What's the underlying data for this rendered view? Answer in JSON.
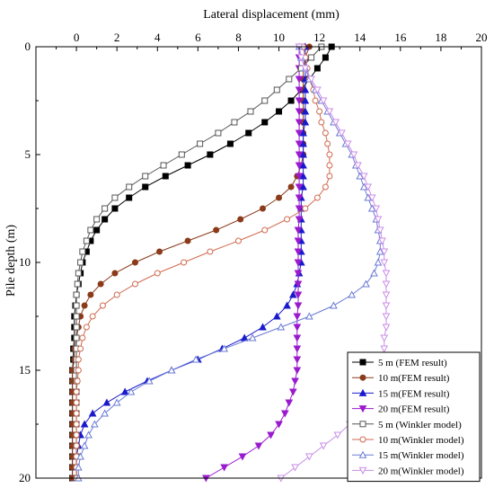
{
  "chart_data": {
    "type": "line",
    "title": "",
    "xlabel": "Lateral displacement (mm)",
    "ylabel": "Pile depth (m)",
    "xlim": [
      -2,
      20
    ],
    "ylim": [
      0,
      20
    ],
    "y_inverted": true,
    "x_axis_position": "top",
    "x_ticks": [
      0,
      2,
      4,
      6,
      8,
      10,
      12,
      14,
      16,
      18,
      20
    ],
    "x_tick_labels": [
      "0",
      "2",
      "4",
      "6",
      "8",
      "10",
      "12",
      "14",
      "16",
      "18",
      "20"
    ],
    "y_ticks": [
      0,
      5,
      10,
      15,
      20
    ],
    "y_tick_labels": [
      "0",
      "5",
      "10",
      "15",
      "20"
    ],
    "grid": false,
    "legend_position": "bottom-right",
    "series": [
      {
        "name": "5 m  (FEM result)",
        "color": "#000000",
        "marker": "square",
        "filled": true,
        "x": [
          12.6,
          12.3,
          11.9,
          11.5,
          11.1,
          10.6,
          10.0,
          9.3,
          8.5,
          7.6,
          6.6,
          5.5,
          4.4,
          3.4,
          2.6,
          1.9,
          1.4,
          1.0,
          0.7,
          0.5,
          0.3,
          0.2,
          0.1,
          0.0,
          -0.05,
          -0.1,
          -0.1,
          -0.1,
          -0.15,
          -0.15,
          -0.2,
          -0.2,
          -0.2,
          -0.2,
          -0.2,
          -0.2,
          -0.2,
          -0.2,
          -0.2,
          -0.2,
          -0.2
        ],
        "y": [
          0,
          0.5,
          1,
          1.5,
          2,
          2.5,
          3,
          3.5,
          4,
          4.5,
          5,
          5.5,
          6,
          6.5,
          7,
          7.5,
          8,
          8.5,
          9,
          9.5,
          10,
          10.5,
          11,
          11.5,
          12,
          12.5,
          13,
          13.5,
          14,
          14.5,
          15,
          15.5,
          16,
          16.5,
          17,
          17.5,
          18,
          18.5,
          19,
          19.5,
          20
        ]
      },
      {
        "name": "10 m(FEM result)",
        "color": "#8b3a1a",
        "marker": "circle",
        "filled": true,
        "x": [
          11.5,
          11.3,
          11.2,
          11.2,
          11.2,
          11.2,
          11.2,
          11.2,
          11.2,
          11.2,
          11.2,
          11.1,
          10.9,
          10.6,
          10.0,
          9.2,
          8.1,
          6.9,
          5.5,
          4.1,
          2.9,
          1.9,
          1.2,
          0.7,
          0.4,
          0.2,
          0.1,
          0.0,
          -0.1,
          -0.1,
          -0.2,
          -0.2,
          -0.2,
          -0.2,
          -0.2,
          -0.2,
          -0.2,
          -0.2,
          -0.2,
          -0.2,
          -0.2
        ],
        "y": [
          0,
          0.5,
          1,
          1.5,
          2,
          2.5,
          3,
          3.5,
          4,
          4.5,
          5,
          5.5,
          6,
          6.5,
          7,
          7.5,
          8,
          8.5,
          9,
          9.5,
          10,
          10.5,
          11,
          11.5,
          12,
          12.5,
          13,
          13.5,
          14,
          14.5,
          15,
          15.5,
          16,
          16.5,
          17,
          17.5,
          18,
          18.5,
          19,
          19.5,
          20
        ]
      },
      {
        "name": "15 m(FEM result)",
        "color": "#1a1acd",
        "marker": "triangle-up",
        "filled": true,
        "x": [
          11.3,
          11.3,
          11.3,
          11.3,
          11.3,
          11.3,
          11.3,
          11.3,
          11.2,
          11.2,
          11.2,
          11.2,
          11.2,
          11.2,
          11.1,
          11.1,
          11.1,
          11.1,
          11.1,
          11.1,
          11.1,
          11.0,
          10.9,
          10.7,
          10.4,
          9.9,
          9.2,
          8.3,
          7.2,
          6.0,
          4.7,
          3.5,
          2.4,
          1.5,
          0.8,
          0.4,
          0.2,
          0.1,
          0.0,
          0.0,
          0.0
        ],
        "y": [
          0,
          0.5,
          1,
          1.5,
          2,
          2.5,
          3,
          3.5,
          4,
          4.5,
          5,
          5.5,
          6,
          6.5,
          7,
          7.5,
          8,
          8.5,
          9,
          9.5,
          10,
          10.5,
          11,
          11.5,
          12,
          12.5,
          13,
          13.5,
          14,
          14.5,
          15,
          15.5,
          16,
          16.5,
          17,
          17.5,
          18,
          18.5,
          19,
          19.5,
          20
        ]
      },
      {
        "name": "20 m(FEM result)",
        "color": "#9a1acd",
        "marker": "triangle-down",
        "filled": true,
        "x": [
          11.0,
          11.0,
          11.0,
          11.0,
          11.0,
          11.0,
          11.0,
          11.0,
          11.0,
          11.0,
          11.0,
          11.0,
          11.0,
          11.0,
          11.0,
          11.0,
          11.0,
          10.95,
          10.95,
          10.95,
          10.95,
          10.95,
          10.95,
          10.95,
          10.95,
          10.9,
          10.9,
          10.9,
          10.9,
          10.9,
          10.9,
          10.8,
          10.7,
          10.5,
          10.3,
          10.0,
          9.6,
          9.0,
          8.2,
          7.3,
          6.4
        ],
        "y": [
          0,
          0.5,
          1,
          1.5,
          2,
          2.5,
          3,
          3.5,
          4,
          4.5,
          5,
          5.5,
          6,
          6.5,
          7,
          7.5,
          8,
          8.5,
          9,
          9.5,
          10,
          10.5,
          11,
          11.5,
          12,
          12.5,
          13,
          13.5,
          14,
          14.5,
          15,
          15.5,
          16,
          16.5,
          17,
          17.5,
          18,
          18.5,
          19,
          19.5,
          20
        ]
      },
      {
        "name": "5 m  (Winkler model)",
        "color": "#555555",
        "marker": "square",
        "filled": false,
        "x": [
          12.1,
          11.6,
          11.1,
          10.5,
          9.9,
          9.3,
          8.6,
          7.8,
          7.0,
          6.1,
          5.2,
          4.3,
          3.4,
          2.6,
          1.9,
          1.4,
          1.0,
          0.7,
          0.5,
          0.3,
          0.2,
          0.1,
          0.05,
          0.0,
          0.0,
          0.0,
          0.0,
          0.0,
          0.0,
          0.0,
          0.0,
          0.0,
          0.0,
          0.0,
          0.0,
          0.0,
          0.0,
          0.0,
          0.0,
          0.0,
          0.0
        ],
        "y": [
          0,
          0.5,
          1,
          1.5,
          2,
          2.5,
          3,
          3.5,
          4,
          4.5,
          5,
          5.5,
          6,
          6.5,
          7,
          7.5,
          8,
          8.5,
          9,
          9.5,
          10,
          10.5,
          11,
          11.5,
          12,
          12.5,
          13,
          13.5,
          14,
          14.5,
          15,
          15.5,
          16,
          16.5,
          17,
          17.5,
          18,
          18.5,
          19,
          19.5,
          20
        ]
      },
      {
        "name": "10 m(Winkler model)",
        "color": "#d06a50",
        "marker": "circle",
        "filled": false,
        "x": [
          11.2,
          11.3,
          11.4,
          11.5,
          11.7,
          11.8,
          12.0,
          12.1,
          12.3,
          12.4,
          12.5,
          12.5,
          12.5,
          12.3,
          11.9,
          11.3,
          10.4,
          9.3,
          8.0,
          6.6,
          5.3,
          4.0,
          2.9,
          2.0,
          1.3,
          0.8,
          0.5,
          0.3,
          0.2,
          0.1,
          0.1,
          0.05,
          0.0,
          0.0,
          0.0,
          0.0,
          0.0,
          0.0,
          0.0,
          0.0,
          0.0
        ],
        "y": [
          0,
          0.5,
          1,
          1.5,
          2,
          2.5,
          3,
          3.5,
          4,
          4.5,
          5,
          5.5,
          6,
          6.5,
          7,
          7.5,
          8,
          8.5,
          9,
          9.5,
          10,
          10.5,
          11,
          11.5,
          12,
          12.5,
          13,
          13.5,
          14,
          14.5,
          15,
          15.5,
          16,
          16.5,
          17,
          17.5,
          18,
          18.5,
          19,
          19.5,
          20
        ]
      },
      {
        "name": "15 m(Winkler model)",
        "color": "#6a7ad6",
        "marker": "triangle-up",
        "filled": false,
        "x": [
          11.0,
          11.1,
          11.3,
          11.5,
          11.8,
          12.1,
          12.4,
          12.7,
          13.0,
          13.3,
          13.6,
          13.8,
          14.0,
          14.2,
          14.4,
          14.6,
          14.8,
          14.9,
          15.0,
          15.0,
          14.9,
          14.7,
          14.3,
          13.6,
          12.7,
          11.5,
          10.1,
          8.7,
          7.3,
          5.9,
          4.7,
          3.6,
          2.7,
          2.0,
          1.4,
          0.9,
          0.6,
          0.4,
          0.2,
          0.1,
          0.1
        ],
        "y": [
          0,
          0.5,
          1,
          1.5,
          2,
          2.5,
          3,
          3.5,
          4,
          4.5,
          5,
          5.5,
          6,
          6.5,
          7,
          7.5,
          8,
          8.5,
          9,
          9.5,
          10,
          10.5,
          11,
          11.5,
          12,
          12.5,
          13,
          13.5,
          14,
          14.5,
          15,
          15.5,
          16,
          16.5,
          17,
          17.5,
          18,
          18.5,
          19,
          19.5,
          20
        ]
      },
      {
        "name": "20 m(Winkler model)",
        "color": "#c88ee6",
        "marker": "triangle-down",
        "filled": false,
        "x": [
          11.0,
          11.1,
          11.3,
          11.6,
          11.9,
          12.2,
          12.5,
          12.8,
          13.1,
          13.4,
          13.7,
          13.9,
          14.2,
          14.4,
          14.6,
          14.8,
          14.9,
          15.0,
          15.1,
          15.2,
          15.2,
          15.3,
          15.3,
          15.3,
          15.3,
          15.3,
          15.3,
          15.2,
          15.2,
          15.1,
          15.0,
          14.9,
          14.7,
          14.4,
          14.0,
          13.5,
          12.9,
          12.2,
          11.5,
          10.8,
          10.1
        ],
        "y": [
          0,
          0.5,
          1,
          1.5,
          2,
          2.5,
          3,
          3.5,
          4,
          4.5,
          5,
          5.5,
          6,
          6.5,
          7,
          7.5,
          8,
          8.5,
          9,
          9.5,
          10,
          10.5,
          11,
          11.5,
          12,
          12.5,
          13,
          13.5,
          14,
          14.5,
          15,
          15.5,
          16,
          16.5,
          17,
          17.5,
          18,
          18.5,
          19,
          19.5,
          20
        ]
      }
    ]
  }
}
